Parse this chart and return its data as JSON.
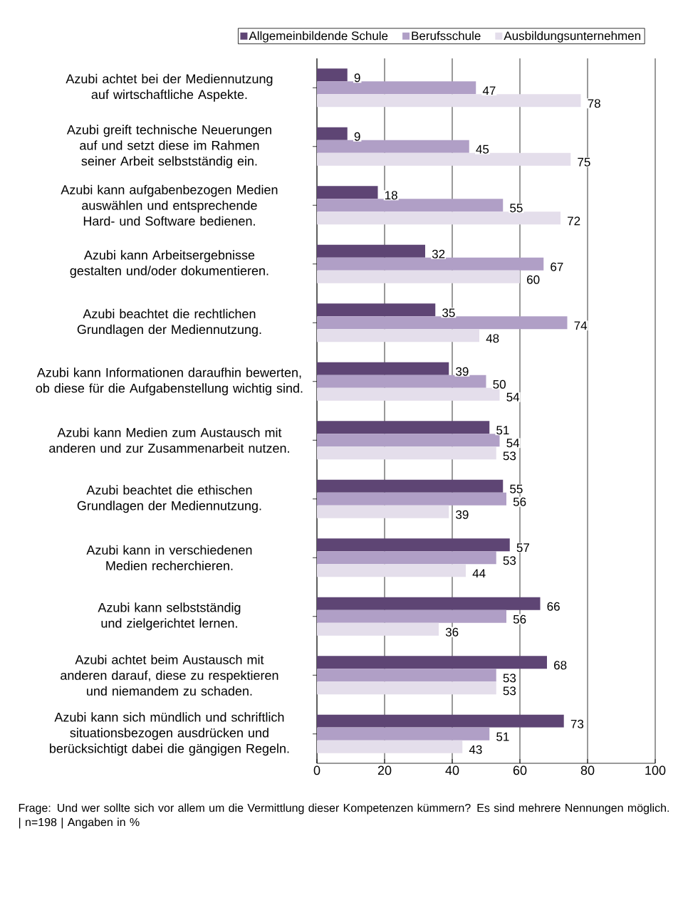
{
  "chart_data": {
    "type": "bar",
    "orientation": "horizontal",
    "categories": [
      "Azubi achtet bei der Mediennutzung auf wirtschaftliche Aspekte.",
      "Azubi greift technische Neuerungen auf und setzt diese im Rahmen seiner Arbeit selbstständig ein.",
      "Azubi kann aufgabenbezogen Medien auswählen und entsprechende Hard- und Software bedienen.",
      "Azubi kann Arbeitsergebnisse gestalten und/oder dokumentieren.",
      "Azubi beachtet die rechtlichen Grundlagen der Mediennutzung.",
      "Azubi kann Informationen daraufhin bewerten, ob diese für die Aufgabenstellung wichtig sind.",
      "Azubi kann Medien zum Austausch mit anderen und zur Zusammenarbeit nutzen.",
      "Azubi beachtet die ethischen Grundlagen der Mediennutzung.",
      "Azubi kann in verschiedenen Medien recherchieren.",
      "Azubi kann selbstständig und zielgerichtet lernen.",
      "Azubi achtet beim Austausch mit anderen darauf, diese zu respektieren und niemandem zu schaden.",
      "Azubi kann sich mündlich und schriftlich situationsbezogen ausdrücken und berücksichtigt dabei die gängigen Regeln."
    ],
    "series": [
      {
        "name": "Allgemeinbildende Schule",
        "color": "#5e4574",
        "values": [
          9,
          9,
          18,
          32,
          35,
          39,
          51,
          55,
          57,
          66,
          68,
          73
        ]
      },
      {
        "name": "Berufsschule",
        "color": "#b09fc6",
        "values": [
          47,
          45,
          55,
          67,
          74,
          50,
          54,
          56,
          53,
          56,
          53,
          51
        ]
      },
      {
        "name": "Ausbildungsunternehmen",
        "color": "#e4deeb",
        "values": [
          78,
          75,
          72,
          60,
          48,
          54,
          53,
          39,
          44,
          36,
          53,
          43
        ]
      }
    ],
    "xlim": [
      0,
      100
    ],
    "xticks": [
      0,
      20,
      40,
      60,
      80,
      100
    ],
    "grid": "x",
    "legend": "top",
    "data_labels": true,
    "annotations": [
      "Frage: Und wer sollte sich vor allem um die Vermittlung dieser Kompetenzen kümmern? Es sind mehrere Nennungen möglich. | n=198 | Angaben in %"
    ]
  }
}
